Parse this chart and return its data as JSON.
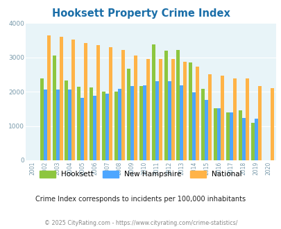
{
  "title": "Hooksett Property Crime Index",
  "years": [
    2001,
    2002,
    2003,
    2004,
    2005,
    2006,
    2007,
    2008,
    2009,
    2010,
    2011,
    2012,
    2013,
    2014,
    2015,
    2016,
    2017,
    2018,
    2019,
    2020
  ],
  "hooksett": [
    0,
    2380,
    3060,
    2330,
    2140,
    2130,
    2000,
    2000,
    2660,
    2170,
    3370,
    3190,
    3210,
    2850,
    2080,
    1520,
    1390,
    1460,
    1100,
    0
  ],
  "nh": [
    0,
    2060,
    2060,
    2060,
    1820,
    1880,
    1940,
    2080,
    2160,
    2180,
    2300,
    2300,
    2180,
    1980,
    1750,
    1520,
    1390,
    1230,
    1220,
    0
  ],
  "national": [
    0,
    3640,
    3600,
    3520,
    3420,
    3360,
    3290,
    3210,
    3050,
    2950,
    2950,
    2950,
    2870,
    2720,
    2500,
    2460,
    2390,
    2380,
    2160,
    2110
  ],
  "hooksett_color": "#8dc63f",
  "nh_color": "#4da6ff",
  "national_color": "#ffb347",
  "bg_color": "#e8f4f8",
  "ylim": [
    0,
    4000
  ],
  "subtitle": "Crime Index corresponds to incidents per 100,000 inhabitants",
  "footer": "© 2025 CityRating.com - https://www.cityrating.com/crime-statistics/",
  "title_color": "#1a6ea8",
  "subtitle_color": "#222222",
  "footer_color": "#888888",
  "bar_width": 0.28
}
